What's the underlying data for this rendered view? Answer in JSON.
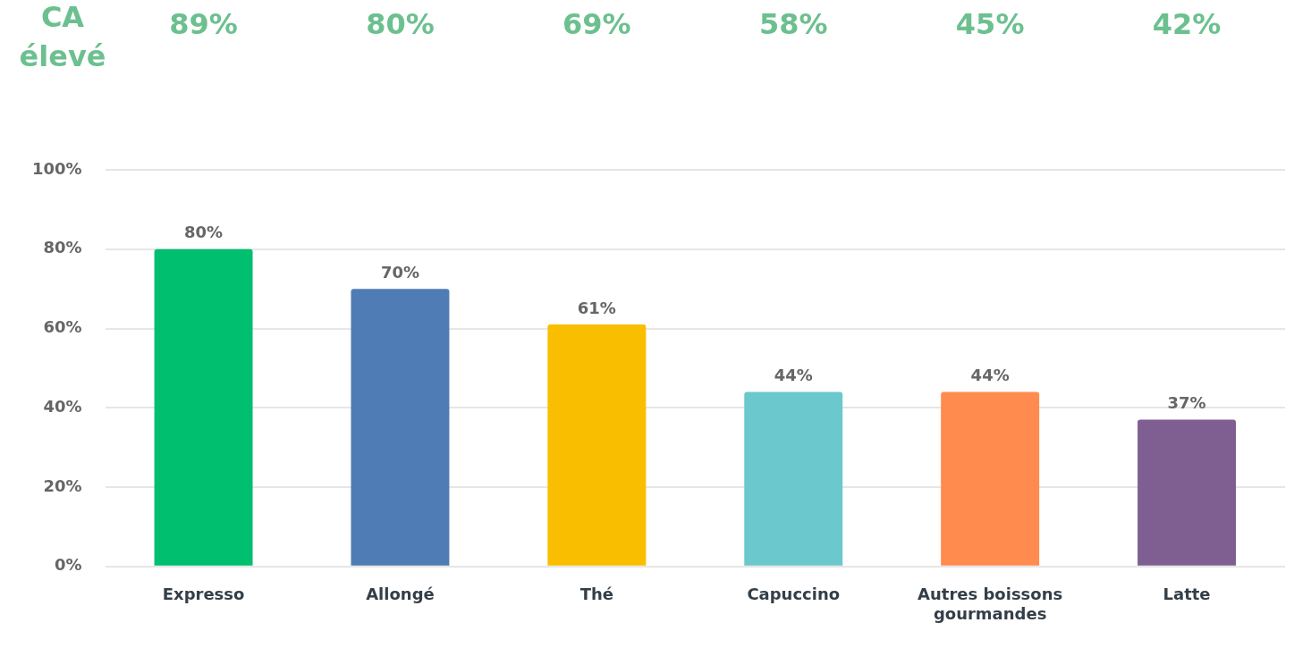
{
  "chart_data": {
    "type": "bar",
    "categories": [
      "Expresso",
      "Allongé",
      "Thé",
      "Capuccino",
      "Autres boissons gourmandes",
      "Latte"
    ],
    "values": [
      80,
      70,
      61,
      44,
      44,
      37
    ],
    "colors": [
      "#00bf6f",
      "#507cb6",
      "#f9be00",
      "#6bc8cd",
      "#ff8b4f",
      "#7f5f92"
    ],
    "value_labels": [
      "80%",
      "70%",
      "61%",
      "44%",
      "44%",
      "37%"
    ],
    "ylim": [
      0,
      100
    ],
    "yticks": [
      {
        "value": 0,
        "label": "0%"
      },
      {
        "value": 20,
        "label": "20%"
      },
      {
        "value": 40,
        "label": "40%"
      },
      {
        "value": 60,
        "label": "60%"
      },
      {
        "value": 80,
        "label": "80%"
      },
      {
        "value": 100,
        "label": "100%"
      }
    ],
    "grid": "y",
    "legend": false,
    "annotations": [
      "CA élevé",
      "89%",
      "80%",
      "69%",
      "58%",
      "45%",
      "42%"
    ]
  }
}
